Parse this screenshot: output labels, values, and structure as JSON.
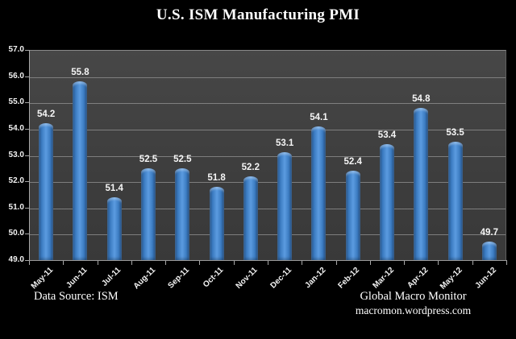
{
  "title": "U.S. ISM Manufacturing PMI",
  "footer": {
    "data_source": "Data Source:  ISM",
    "credit_line1": "Global Macro Monitor",
    "credit_line2": "macromon.wordpress.com"
  },
  "colors": {
    "background": "#000000",
    "plot_background": "#3d3d3d",
    "gridline": "#8a8a8a",
    "bar_center": "#5b9be0",
    "bar_edge": "#27588f",
    "text": "#ffffff"
  },
  "chart_data": {
    "type": "bar",
    "title": "U.S. ISM Manufacturing PMI",
    "categories": [
      "May-11",
      "Jun-11",
      "Jul-11",
      "Aug-11",
      "Sep-11",
      "Oct-11",
      "Nov-11",
      "Dec-11",
      "Jan-12",
      "Feb-12",
      "Mar-12",
      "Apr-12",
      "May-12",
      "Jun-12"
    ],
    "values": [
      54.2,
      55.8,
      51.4,
      52.5,
      52.5,
      51.8,
      52.2,
      53.1,
      54.1,
      52.4,
      53.4,
      54.8,
      53.5,
      49.7
    ],
    "xlabel": "",
    "ylabel": "",
    "ylim": [
      49.0,
      57.0
    ],
    "ytick_step": 1.0,
    "ytick_labels": [
      "57.0",
      "56.0",
      "55.0",
      "54.0",
      "53.0",
      "52.0",
      "51.0",
      "50.0",
      "49.0"
    ],
    "grid": true,
    "legend_position": "none",
    "data_labels": true
  }
}
